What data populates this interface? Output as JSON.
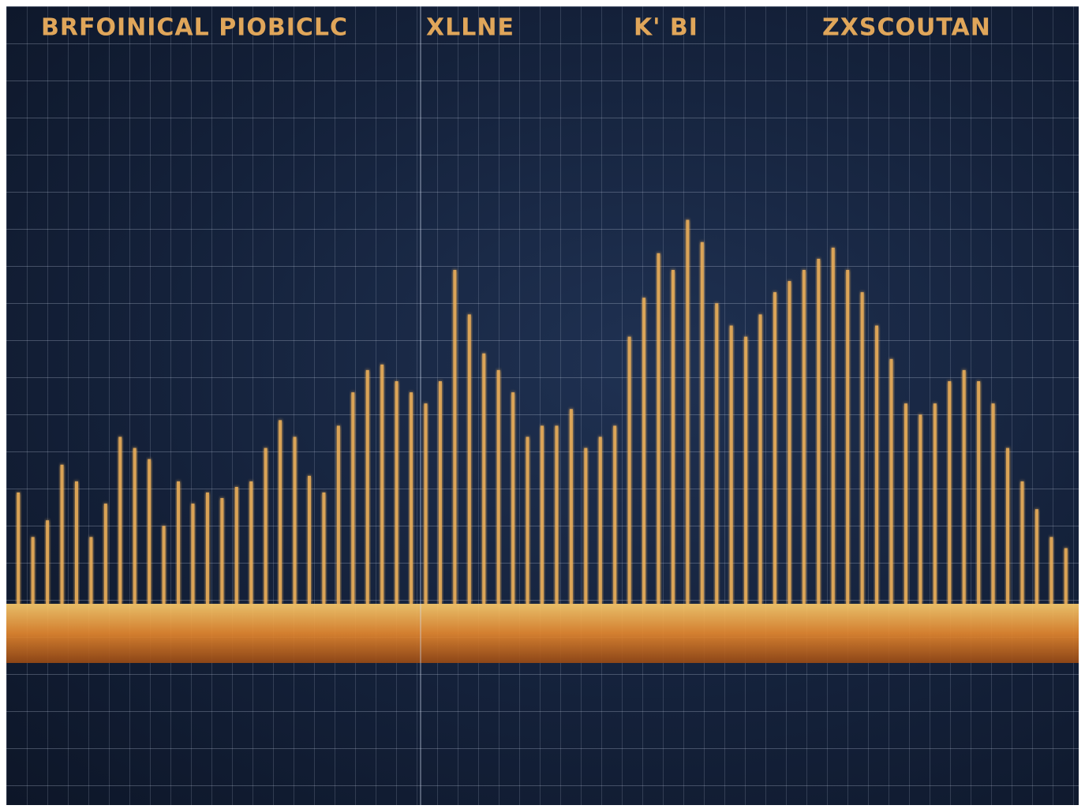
{
  "chart_data": {
    "type": "bar",
    "header_labels": [
      "BRFOINICAL PIOBICLC",
      "XLLNE",
      "K' BI",
      "ZXSCOUTAN"
    ],
    "values": [
      20,
      12,
      15,
      25,
      22,
      12,
      18,
      30,
      28,
      26,
      14,
      22,
      18,
      20,
      19,
      21,
      22,
      28,
      33,
      30,
      23,
      20,
      32,
      38,
      42,
      43,
      40,
      38,
      36,
      40,
      60,
      52,
      45,
      42,
      38,
      30,
      32,
      32,
      35,
      28,
      30,
      32,
      48,
      55,
      63,
      60,
      69,
      65,
      54,
      50,
      48,
      52,
      56,
      58,
      60,
      62,
      64,
      60,
      56,
      50,
      44,
      36,
      34,
      36,
      40,
      42,
      40,
      36,
      28,
      22,
      17,
      12,
      10
    ],
    "color": "#f0b25a",
    "ylim": [
      0,
      100
    ]
  }
}
